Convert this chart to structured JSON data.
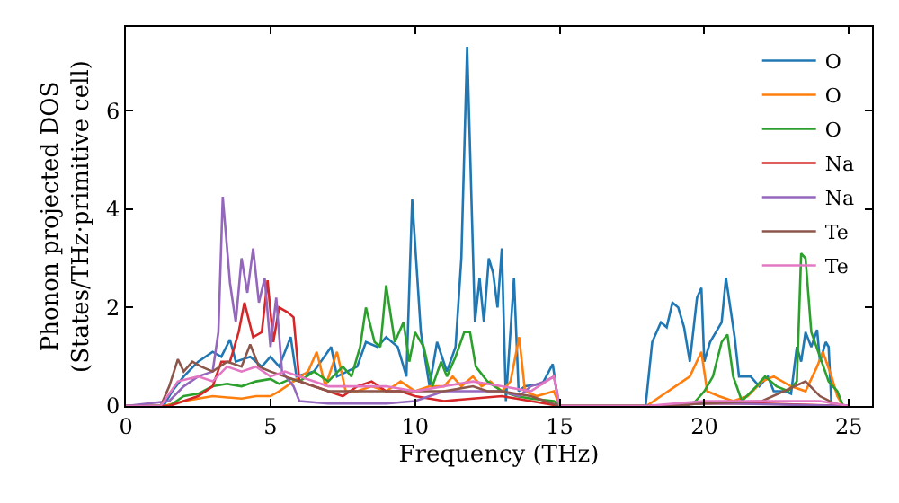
{
  "chart_data": {
    "type": "line",
    "xlabel": "Frequency (THz)",
    "ylabel": "Phonon projected DOS\n(States/THz·primitive cell)",
    "xlim": [
      0,
      25.8
    ],
    "ylim": [
      0,
      7.7
    ],
    "xticks": [
      0,
      5,
      10,
      15,
      20,
      25
    ],
    "yticks": [
      0,
      2,
      4,
      6
    ],
    "grid": false,
    "legend": "top right",
    "marker": "none",
    "line_style": "solid",
    "series": [
      {
        "name": "O",
        "color": "#1f77b4",
        "x": [
          0,
          1.3,
          1.6,
          2.0,
          2.5,
          3.0,
          3.3,
          3.6,
          3.8,
          4.3,
          4.7,
          5.0,
          5.3,
          5.7,
          5.9,
          6.5,
          7.1,
          7.3,
          8.0,
          8.3,
          8.7,
          9.0,
          9.4,
          9.7,
          9.9,
          10.2,
          10.5,
          10.76,
          11.1,
          11.4,
          11.6,
          11.8,
          12.07,
          12.23,
          12.38,
          12.55,
          12.7,
          12.85,
          13.0,
          13.14,
          13.42,
          13.58,
          13.8,
          14.4,
          14.76,
          14.97,
          17.97,
          18.2,
          18.5,
          18.7,
          18.9,
          19.1,
          19.3,
          19.5,
          19.75,
          19.9,
          20.0,
          20.2,
          20.4,
          20.6,
          20.75,
          20.9,
          21.05,
          21.2,
          21.6,
          21.9,
          22.2,
          22.4,
          22.8,
          23.0,
          23.2,
          23.35,
          23.5,
          23.7,
          23.9,
          24.0,
          24.2,
          24.3,
          24.4,
          25.0
        ],
        "values": [
          0,
          0,
          0.3,
          0.6,
          0.9,
          1.1,
          1.0,
          1.35,
          0.9,
          1.0,
          0.8,
          1.0,
          0.8,
          1.4,
          0.6,
          0.7,
          1.2,
          0.6,
          0.8,
          1.3,
          1.2,
          1.4,
          1.2,
          0.6,
          4.2,
          1.5,
          0.4,
          1.3,
          0.7,
          1.2,
          3.0,
          7.3,
          1.7,
          2.6,
          1.7,
          3.0,
          2.7,
          2.0,
          3.2,
          0.1,
          2.6,
          0.3,
          0.4,
          0.45,
          0.85,
          0,
          0,
          1.3,
          1.7,
          1.6,
          2.1,
          2.0,
          1.6,
          0.9,
          2.2,
          2.4,
          0.9,
          1.3,
          1.5,
          1.7,
          2.6,
          2.0,
          1.4,
          0.6,
          0.6,
          0.4,
          0.6,
          0.3,
          0.3,
          0.25,
          1.2,
          0.9,
          1.5,
          1.2,
          1.55,
          0.9,
          1.3,
          1.2,
          0,
          0
        ]
      },
      {
        "name": "O",
        "color": "#ff7f0e",
        "x": [
          0,
          1.3,
          2.0,
          3.0,
          4.0,
          4.5,
          5.0,
          5.3,
          5.8,
          6.3,
          6.6,
          6.9,
          7.3,
          7.6,
          8.0,
          8.5,
          9.0,
          9.5,
          10.0,
          10.5,
          11.0,
          11.3,
          11.6,
          12.0,
          12.3,
          12.6,
          13.0,
          13.3,
          13.6,
          13.8,
          14.2,
          14.8,
          15.0,
          18.0,
          18.5,
          19.0,
          19.5,
          19.9,
          20.1,
          20.5,
          21.0,
          21.5,
          22.0,
          22.4,
          23.0,
          23.5,
          23.9,
          24.1,
          24.4,
          24.6,
          24.8,
          25.0
        ],
        "values": [
          0,
          0,
          0.1,
          0.2,
          0.15,
          0.2,
          0.2,
          0.3,
          0.5,
          0.7,
          1.1,
          0.4,
          1.1,
          0.3,
          0.3,
          0.4,
          0.3,
          0.5,
          0.3,
          0.4,
          0.4,
          0.6,
          0.4,
          0.6,
          0.4,
          0.5,
          0.3,
          0.5,
          1.4,
          0.3,
          0.2,
          0.3,
          0,
          0,
          0.2,
          0.4,
          0.6,
          1.1,
          0.3,
          0.2,
          0.1,
          0.2,
          0.5,
          0.6,
          0.4,
          0.3,
          0.8,
          1.1,
          0.6,
          0.2,
          0,
          0
        ]
      },
      {
        "name": "O",
        "color": "#2ca02c",
        "x": [
          0,
          1.5,
          2.0,
          2.5,
          3.0,
          3.5,
          4.0,
          4.5,
          5.0,
          5.3,
          5.7,
          6.0,
          6.5,
          7.0,
          7.5,
          7.8,
          8.1,
          8.3,
          8.6,
          8.8,
          9.0,
          9.3,
          9.6,
          9.8,
          10.0,
          10.3,
          10.6,
          10.9,
          11.1,
          11.4,
          11.7,
          11.9,
          12.1,
          12.5,
          13.0,
          13.5,
          14.0,
          14.8,
          15.0,
          19.4,
          19.7,
          20.0,
          20.3,
          20.6,
          20.8,
          21.0,
          21.3,
          21.8,
          22.1,
          22.5,
          22.9,
          23.2,
          23.35,
          23.5,
          23.7,
          24.0,
          24.3,
          24.6,
          24.8,
          25.0
        ],
        "values": [
          0,
          0,
          0.2,
          0.25,
          0.4,
          0.45,
          0.4,
          0.5,
          0.55,
          0.45,
          0.55,
          0.5,
          0.7,
          0.5,
          0.8,
          0.6,
          1.2,
          2.0,
          1.3,
          1.2,
          2.45,
          1.3,
          1.7,
          0.9,
          1.5,
          1.2,
          0.4,
          0.9,
          0.6,
          1.0,
          1.5,
          1.5,
          0.8,
          0.5,
          0.3,
          0.2,
          0.15,
          0.1,
          0,
          0,
          0.1,
          0.3,
          0.6,
          1.3,
          1.45,
          0.6,
          0.1,
          0.4,
          0.6,
          0.4,
          0.3,
          0.5,
          3.1,
          3.0,
          1.5,
          1.0,
          0.5,
          0.3,
          0,
          0
        ]
      },
      {
        "name": "Na",
        "color": "#d62728",
        "x": [
          0,
          1.5,
          2.0,
          2.5,
          3.0,
          3.3,
          3.6,
          3.9,
          4.1,
          4.4,
          4.7,
          4.9,
          5.1,
          5.3,
          5.6,
          5.8,
          6.0,
          6.5,
          7.0,
          7.5,
          8.0,
          8.5,
          9.0,
          9.5,
          10.0,
          10.5,
          11.0,
          12.0,
          13.0,
          14.0,
          15.0,
          18.0,
          20.0,
          22.0,
          25.0
        ],
        "values": [
          0,
          0,
          0.1,
          0.2,
          0.4,
          0.9,
          0.9,
          1.5,
          2.1,
          1.4,
          1.5,
          2.55,
          1.3,
          2.0,
          1.9,
          1.8,
          0.5,
          0.4,
          0.3,
          0.2,
          0.4,
          0.5,
          0.3,
          0.3,
          0.2,
          0.15,
          0.1,
          0.15,
          0.2,
          0.1,
          0,
          0,
          0.05,
          0.05,
          0
        ]
      },
      {
        "name": "Na",
        "color": "#9467bd",
        "x": [
          0,
          1.5,
          2.0,
          2.5,
          3.0,
          3.2,
          3.35,
          3.6,
          3.8,
          4.0,
          4.2,
          4.4,
          4.6,
          4.8,
          5.0,
          5.2,
          5.4,
          5.8,
          6.0,
          7.0,
          8.0,
          9.0,
          10.0,
          11.0,
          12.0,
          13.0,
          13.6,
          14.0,
          14.5,
          14.8,
          15.0,
          18.0,
          20.0,
          21.0,
          25.0
        ],
        "values": [
          0,
          0.1,
          0.4,
          0.6,
          0.7,
          1.5,
          4.25,
          2.5,
          1.7,
          3.0,
          2.3,
          3.2,
          2.1,
          2.6,
          1.2,
          2.2,
          0.7,
          0.4,
          0.1,
          0.05,
          0.05,
          0.05,
          0.1,
          0.3,
          0.3,
          0.3,
          0.2,
          0.4,
          0.5,
          0.6,
          0,
          0,
          0.05,
          0.05,
          0
        ]
      },
      {
        "name": "Te",
        "color": "#8c564b",
        "x": [
          0,
          1.2,
          1.5,
          1.8,
          2.0,
          2.3,
          2.6,
          3.0,
          3.5,
          4.0,
          4.3,
          4.6,
          5.0,
          5.5,
          6.0,
          6.5,
          7.0,
          8.0,
          9.0,
          10.0,
          11.0,
          12.0,
          12.5,
          13.0,
          14.0,
          15.0,
          18.0,
          20.0,
          22.0,
          23.5,
          24.0,
          24.5,
          25.0
        ],
        "values": [
          0,
          0,
          0.4,
          0.95,
          0.7,
          0.9,
          0.8,
          0.7,
          0.9,
          0.8,
          1.25,
          0.8,
          0.7,
          0.6,
          0.5,
          0.4,
          0.3,
          0.3,
          0.3,
          0.3,
          0.3,
          0.4,
          0.3,
          0.3,
          0.2,
          0,
          0,
          0.05,
          0.1,
          0.5,
          0.2,
          0.05,
          0
        ]
      },
      {
        "name": "Te",
        "color": "#e377c2",
        "x": [
          0,
          1.2,
          1.8,
          2.5,
          3.0,
          3.5,
          4.0,
          4.5,
          5.0,
          5.5,
          6.0,
          6.5,
          7.0,
          8.0,
          9.0,
          10.0,
          11.0,
          12.0,
          13.0,
          14.0,
          14.8,
          15.0,
          18.0,
          20.0,
          21.0,
          22.0,
          23.0,
          24.0,
          25.0
        ],
        "values": [
          0,
          0,
          0.5,
          0.6,
          0.5,
          0.8,
          0.7,
          0.8,
          0.6,
          0.7,
          0.6,
          0.5,
          0.4,
          0.4,
          0.4,
          0.3,
          0.4,
          0.5,
          0.4,
          0.3,
          0.6,
          0,
          0,
          0.1,
          0.1,
          0.1,
          0.1,
          0.1,
          0
        ]
      }
    ]
  }
}
